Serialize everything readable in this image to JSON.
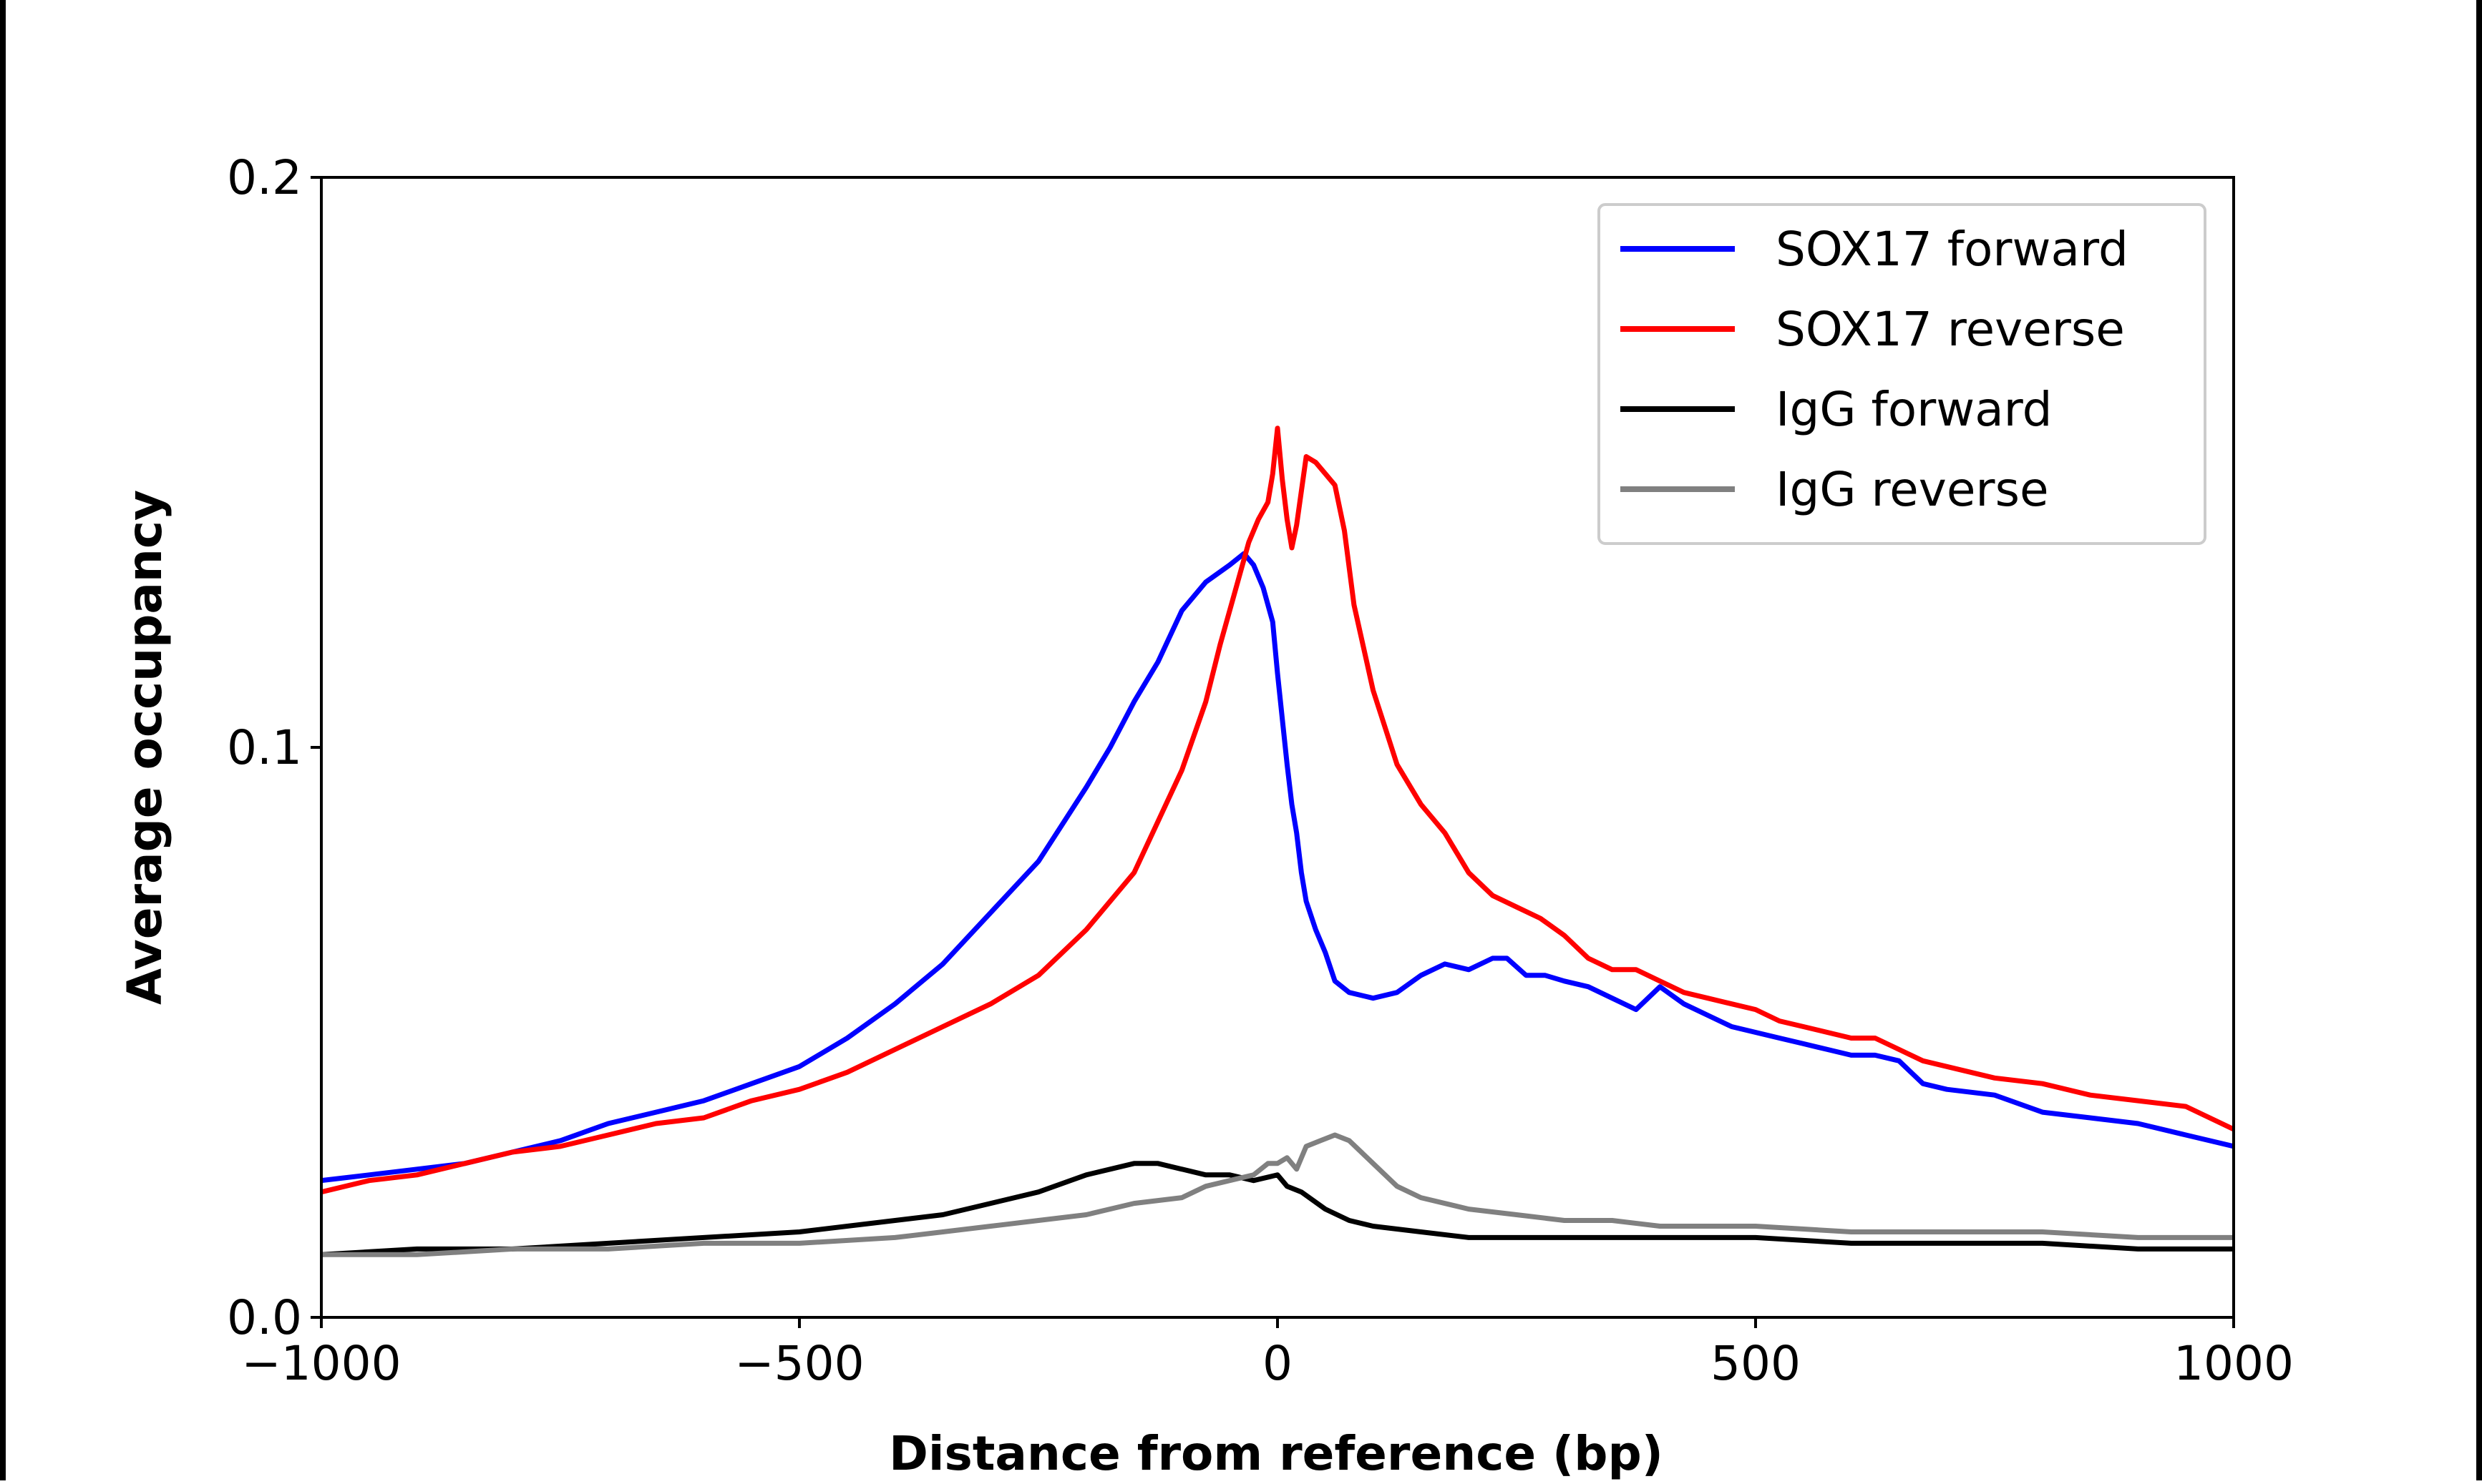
{
  "chart_data": {
    "type": "line",
    "title": "",
    "xlabel": "Distance from reference (bp)",
    "ylabel": "Average occupancy",
    "xlim": [
      -1000,
      1000
    ],
    "ylim": [
      0.0,
      0.2
    ],
    "xticks": [
      -1000,
      -500,
      0,
      500,
      1000
    ],
    "xtick_labels": [
      "−1000",
      "−500",
      "0",
      "500",
      "1000"
    ],
    "yticks": [
      0.0,
      0.1,
      0.2
    ],
    "ytick_labels": [
      "0.0",
      "0.1",
      "0.2"
    ],
    "grid": false,
    "legend_position": "top-right",
    "series": [
      {
        "name": "SOX17 forward",
        "color": "#0000ff",
        "x": [
          -1000,
          -950,
          -900,
          -850,
          -800,
          -750,
          -700,
          -650,
          -600,
          -550,
          -500,
          -450,
          -400,
          -350,
          -300,
          -250,
          -200,
          -175,
          -150,
          -125,
          -100,
          -75,
          -50,
          -35,
          -25,
          -15,
          -5,
          0,
          5,
          10,
          15,
          20,
          25,
          30,
          40,
          50,
          60,
          75,
          100,
          125,
          150,
          175,
          200,
          225,
          240,
          260,
          280,
          300,
          325,
          350,
          375,
          400,
          425,
          450,
          475,
          500,
          525,
          550,
          575,
          600,
          625,
          650,
          675,
          700,
          750,
          800,
          850,
          900,
          950,
          1000
        ],
        "y": [
          0.024,
          0.025,
          0.026,
          0.027,
          0.029,
          0.031,
          0.034,
          0.036,
          0.038,
          0.041,
          0.044,
          0.049,
          0.055,
          0.062,
          0.071,
          0.08,
          0.093,
          0.1,
          0.108,
          0.115,
          0.124,
          0.129,
          0.132,
          0.134,
          0.132,
          0.128,
          0.122,
          0.113,
          0.105,
          0.097,
          0.09,
          0.085,
          0.078,
          0.073,
          0.068,
          0.064,
          0.059,
          0.057,
          0.056,
          0.057,
          0.06,
          0.062,
          0.061,
          0.063,
          0.063,
          0.06,
          0.06,
          0.059,
          0.058,
          0.056,
          0.054,
          0.058,
          0.055,
          0.053,
          0.051,
          0.05,
          0.049,
          0.048,
          0.047,
          0.046,
          0.046,
          0.045,
          0.041,
          0.04,
          0.039,
          0.036,
          0.035,
          0.034,
          0.032,
          0.03
        ]
      },
      {
        "name": "SOX17 reverse",
        "color": "#ff0000",
        "x": [
          -1000,
          -950,
          -900,
          -850,
          -800,
          -750,
          -700,
          -650,
          -600,
          -550,
          -500,
          -450,
          -400,
          -350,
          -300,
          -250,
          -200,
          -150,
          -125,
          -100,
          -75,
          -60,
          -45,
          -30,
          -20,
          -10,
          -5,
          0,
          5,
          10,
          15,
          20,
          25,
          30,
          40,
          50,
          60,
          70,
          80,
          100,
          125,
          150,
          175,
          200,
          225,
          250,
          275,
          300,
          325,
          350,
          375,
          400,
          425,
          450,
          475,
          500,
          525,
          550,
          575,
          600,
          625,
          650,
          675,
          700,
          750,
          800,
          850,
          900,
          950,
          1000
        ],
        "y": [
          0.022,
          0.024,
          0.025,
          0.027,
          0.029,
          0.03,
          0.032,
          0.034,
          0.035,
          0.038,
          0.04,
          0.043,
          0.047,
          0.051,
          0.055,
          0.06,
          0.068,
          0.078,
          0.087,
          0.096,
          0.108,
          0.118,
          0.127,
          0.136,
          0.14,
          0.143,
          0.148,
          0.156,
          0.147,
          0.14,
          0.135,
          0.139,
          0.145,
          0.151,
          0.15,
          0.148,
          0.146,
          0.138,
          0.125,
          0.11,
          0.097,
          0.09,
          0.085,
          0.078,
          0.074,
          0.072,
          0.07,
          0.067,
          0.063,
          0.061,
          0.061,
          0.059,
          0.057,
          0.056,
          0.055,
          0.054,
          0.052,
          0.051,
          0.05,
          0.049,
          0.049,
          0.047,
          0.045,
          0.044,
          0.042,
          0.041,
          0.039,
          0.038,
          0.037,
          0.033
        ]
      },
      {
        "name": "IgG forward",
        "color": "#000000",
        "x": [
          -1000,
          -900,
          -800,
          -700,
          -600,
          -500,
          -400,
          -350,
          -300,
          -250,
          -200,
          -175,
          -150,
          -125,
          -100,
          -75,
          -50,
          -25,
          0,
          10,
          25,
          50,
          75,
          100,
          150,
          200,
          250,
          300,
          400,
          500,
          600,
          700,
          800,
          900,
          1000
        ],
        "y": [
          0.011,
          0.012,
          0.012,
          0.013,
          0.014,
          0.015,
          0.017,
          0.018,
          0.02,
          0.022,
          0.025,
          0.026,
          0.027,
          0.027,
          0.026,
          0.025,
          0.025,
          0.024,
          0.025,
          0.023,
          0.022,
          0.019,
          0.017,
          0.016,
          0.015,
          0.014,
          0.014,
          0.014,
          0.014,
          0.014,
          0.013,
          0.013,
          0.013,
          0.012,
          0.012
        ]
      },
      {
        "name": "IgG reverse",
        "color": "#808080",
        "x": [
          -1000,
          -900,
          -800,
          -700,
          -600,
          -500,
          -400,
          -350,
          -300,
          -250,
          -200,
          -150,
          -100,
          -75,
          -50,
          -25,
          -10,
          0,
          10,
          20,
          30,
          45,
          60,
          75,
          100,
          125,
          150,
          200,
          250,
          300,
          350,
          400,
          500,
          600,
          700,
          800,
          900,
          1000
        ],
        "y": [
          0.011,
          0.011,
          0.012,
          0.012,
          0.013,
          0.013,
          0.014,
          0.015,
          0.016,
          0.017,
          0.018,
          0.02,
          0.021,
          0.023,
          0.024,
          0.025,
          0.027,
          0.027,
          0.028,
          0.026,
          0.03,
          0.031,
          0.032,
          0.031,
          0.027,
          0.023,
          0.021,
          0.019,
          0.018,
          0.017,
          0.017,
          0.016,
          0.016,
          0.015,
          0.015,
          0.015,
          0.014,
          0.014
        ]
      }
    ]
  }
}
